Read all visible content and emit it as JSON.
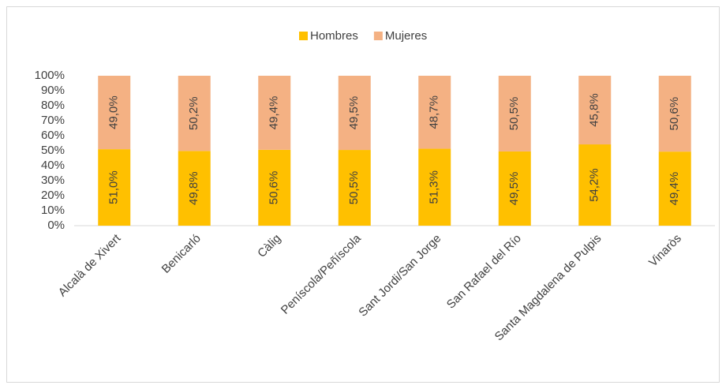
{
  "chart_data": {
    "type": "stacked_bar",
    "categories": [
      "Alcalà de Xivert",
      "Benicarló",
      "Càlig",
      "Peníscola/Peñíscola",
      "Sant Jordi/San Jorge",
      "San Rafael del Río",
      "Santa Magdalena de Pulpis",
      "Vinaròs"
    ],
    "series": [
      {
        "name": "Hombres",
        "color": "#FFC000",
        "values": [
          51.0,
          49.8,
          50.6,
          50.5,
          51.3,
          49.5,
          54.2,
          49.4
        ],
        "value_labels": [
          "51,0%",
          "49,8%",
          "50,6%",
          "50,5%",
          "51,3%",
          "49,5%",
          "54,2%",
          "49,4%"
        ]
      },
      {
        "name": "Mujeres",
        "color": "#F4B183",
        "values": [
          49.0,
          50.2,
          49.4,
          49.5,
          48.7,
          50.5,
          45.8,
          50.6
        ],
        "value_labels": [
          "49,0%",
          "50,2%",
          "49,4%",
          "49,5%",
          "48,7%",
          "50,5%",
          "45,8%",
          "50,6%"
        ]
      }
    ],
    "ylim": [
      0,
      100
    ],
    "yticks": [
      {
        "value": 0,
        "label": "0%"
      },
      {
        "value": 10,
        "label": "10%"
      },
      {
        "value": 20,
        "label": "20%"
      },
      {
        "value": 30,
        "label": "30%"
      },
      {
        "value": 40,
        "label": "40%"
      },
      {
        "value": 50,
        "label": "50%"
      },
      {
        "value": 60,
        "label": "60%"
      },
      {
        "value": 70,
        "label": "70%"
      },
      {
        "value": 80,
        "label": "80%"
      },
      {
        "value": 90,
        "label": "90%"
      },
      {
        "value": 100,
        "label": "100%"
      }
    ],
    "grid": false,
    "legend": "top"
  }
}
